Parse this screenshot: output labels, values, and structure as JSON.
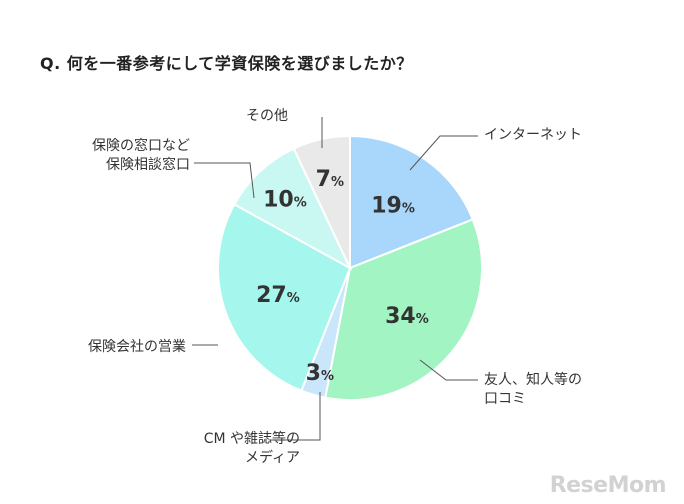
{
  "title": "Q. 何を一番参考にして学資保険を選びましたか？",
  "watermark": "ReseMom",
  "chart_data": {
    "type": "pie",
    "unit": "%",
    "title": "Q. 何を一番参考にして学資保険を選びましたか？",
    "slices": [
      {
        "label": "インターネット",
        "lines": [
          "インターネット"
        ],
        "value": 19,
        "color": "#a9d6fb"
      },
      {
        "label": "友人、知人等の口コミ",
        "lines": [
          "友人、知人等の",
          "口コミ"
        ],
        "value": 34,
        "color": "#a3f4c3"
      },
      {
        "label": "CM や雑誌等のメディア",
        "lines": [
          "CM や雑誌等の",
          "メディア"
        ],
        "value": 3,
        "color": "#c9e6fb"
      },
      {
        "label": "保険会社の営業",
        "lines": [
          "保険会社の営業"
        ],
        "value": 27,
        "color": "#a5f6ec"
      },
      {
        "label": "保険の窓口など保険相談窓口",
        "lines": [
          "保険の窓口など",
          "保険相談窓口"
        ],
        "value": 10,
        "color": "#c9f8f2"
      },
      {
        "label": "その他",
        "lines": [
          "その他"
        ],
        "value": 7,
        "color": "#e9e9e9"
      }
    ]
  }
}
